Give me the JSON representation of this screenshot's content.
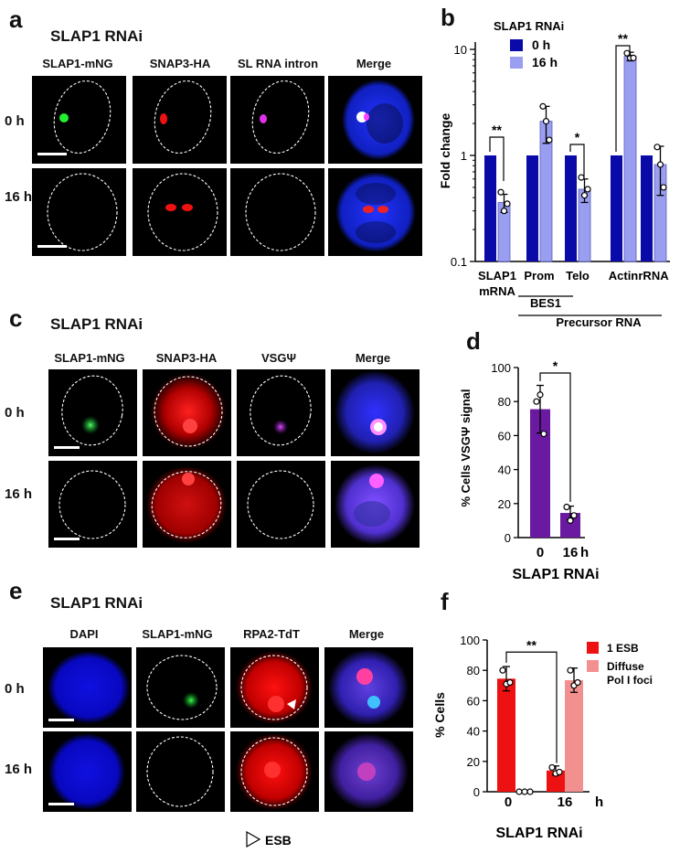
{
  "panel_a": {
    "letter": "a",
    "title": "SLAP1 RNAi",
    "columns": [
      "SLAP1-mNG",
      "SNAP3-HA",
      "SL RNA intron",
      "Merge"
    ],
    "rows": [
      "0 h",
      "16 h"
    ]
  },
  "panel_b": {
    "letter": "b",
    "legend_title": "SLAP1 RNAi",
    "group_labels": {
      "bes1": "BES1",
      "precursor": "Precursor RNA"
    },
    "sig_labels": [
      "**",
      "*",
      "**"
    ]
  },
  "panel_c": {
    "letter": "c",
    "title": "SLAP1 RNAi",
    "columns": [
      "SLAP1-mNG",
      "SNAP3-HA",
      "VSGΨ",
      "Merge"
    ],
    "rows": [
      "0 h",
      "16 h"
    ]
  },
  "panel_d": {
    "letter": "d",
    "xlabel_title": "SLAP1 RNAi",
    "x_unit": "h",
    "sig_label": "*"
  },
  "panel_e": {
    "letter": "e",
    "title": "SLAP1 RNAi",
    "columns": [
      "DAPI",
      "SLAP1-mNG",
      "RPA2-TdT",
      "Merge"
    ],
    "rows": [
      "0 h",
      "16 h"
    ],
    "arrow_legend": "ESB"
  },
  "panel_f": {
    "letter": "f",
    "xlabel_title": "SLAP1 RNAi",
    "x_unit": "h",
    "sig_label": "**"
  },
  "colors": {
    "dark_blue": "#0a0aa8",
    "light_blue": "#9a9ef0",
    "purple": "#6a1aa0",
    "red": "#ee1111",
    "pink": "#f29090"
  },
  "chart_data": [
    {
      "id": "b",
      "type": "bar",
      "scale": "log",
      "ylabel": "Fold change",
      "ylim": [
        0.1,
        10
      ],
      "yticks": [
        "0.1",
        "1",
        "10"
      ],
      "categories": [
        "SLAP1\nmRNA",
        "Prom",
        "Telo",
        "Actin",
        "rRNA"
      ],
      "series": [
        {
          "name": "0 h",
          "color": "#0a0aa8",
          "values": [
            1,
            1,
            1,
            1,
            1
          ]
        },
        {
          "name": "16 h",
          "color": "#9a9ef0",
          "values": [
            0.36,
            2.1,
            0.48,
            8.6,
            0.82
          ]
        }
      ],
      "errors": [
        0.07,
        0.8,
        0.12,
        0.8,
        0.4
      ],
      "points": [
        [
          0.45,
          0.3,
          0.35
        ],
        [
          2.9,
          2.1,
          1.4
        ],
        [
          0.62,
          0.42,
          0.48
        ],
        [
          9.2,
          8.3,
          8.3
        ],
        [
          1.2,
          0.82,
          0.5
        ]
      ]
    },
    {
      "id": "d",
      "type": "bar",
      "ylabel": "% Cells VSGΨ signal",
      "ylim": [
        0,
        100
      ],
      "yticks": [
        "0",
        "20",
        "40",
        "60",
        "80",
        "100"
      ],
      "categories": [
        "0",
        "16"
      ],
      "values": [
        75.5,
        14.5
      ],
      "errors": [
        14,
        4
      ],
      "points": [
        [
          80,
          84,
          61
        ],
        [
          18,
          10,
          13
        ]
      ],
      "color": "#6a1aa0"
    },
    {
      "id": "f",
      "type": "bar",
      "ylabel": "% Cells",
      "ylim": [
        0,
        100
      ],
      "yticks": [
        "0",
        "20",
        "40",
        "60",
        "80",
        "100"
      ],
      "categories": [
        "0",
        "16"
      ],
      "series": [
        {
          "name": "1 ESB",
          "color": "#ee1111",
          "values": [
            74.5,
            14
          ]
        },
        {
          "name": "Diffuse\nPol I foci",
          "color": "#f29090",
          "values": [
            0,
            73.5
          ]
        }
      ],
      "errors": [
        [
          8,
          0
        ],
        [
          3,
          8
        ]
      ],
      "points": [
        [
          [
            80,
            71,
            72
          ],
          [
            0,
            0,
            0
          ]
        ],
        [
          [
            16,
            12,
            13
          ],
          [
            80,
            70,
            72
          ]
        ]
      ]
    }
  ]
}
